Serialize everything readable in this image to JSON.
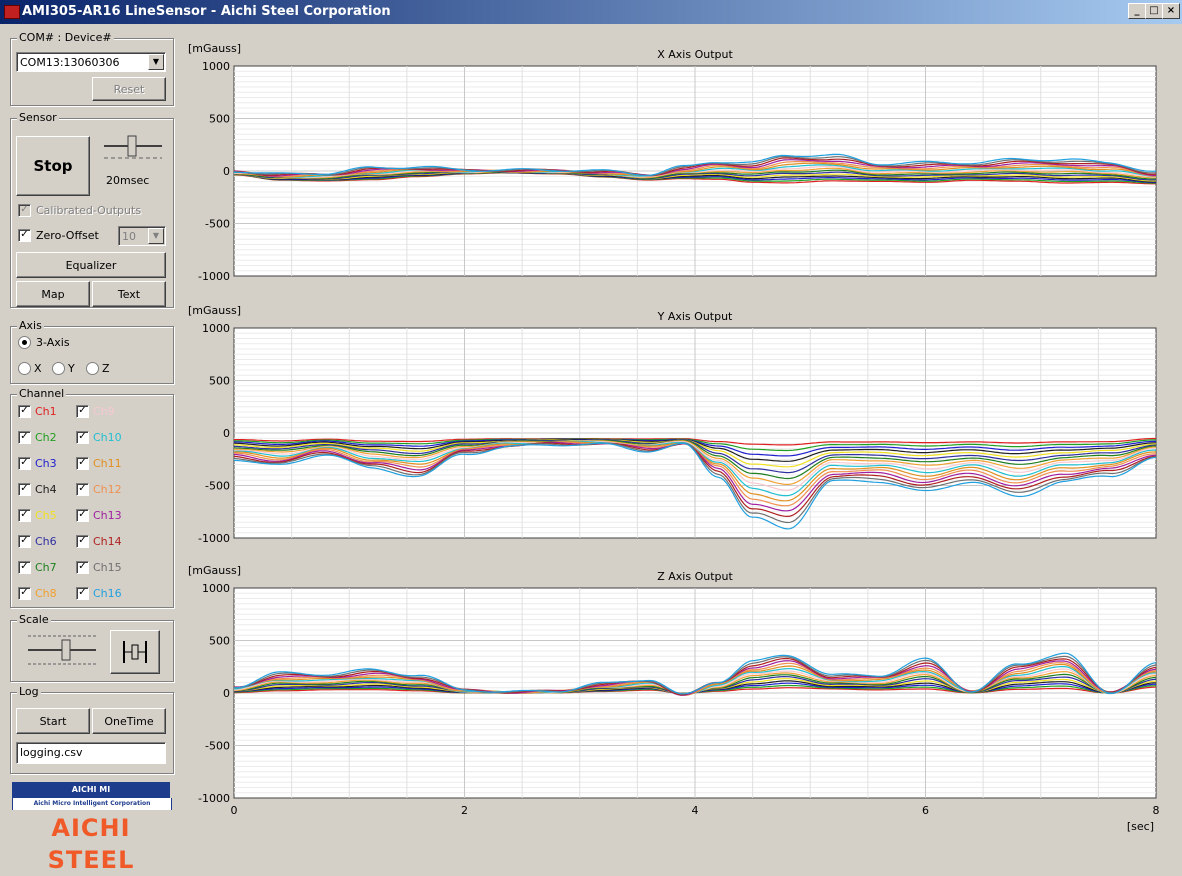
{
  "window": {
    "title": "AMI305-AR16 LineSensor - Aichi Steel Corporation",
    "controls": {
      "minimize": "_",
      "maximize": "□",
      "close": "×"
    }
  },
  "device": {
    "group_label": "COM# : Device#",
    "selected": "COM13:13060306",
    "reset_label": "Reset"
  },
  "sensor": {
    "group_label": "Sensor",
    "stop_label": "Stop",
    "interval_label": "20msec",
    "calibrated_label": "Calibrated-Outputs",
    "zero_offset_label": "Zero-Offset",
    "zero_offset_value": "10",
    "equalizer_label": "Equalizer",
    "map_label": "Map",
    "text_label": "Text"
  },
  "axis": {
    "group_label": "Axis",
    "three_axis_label": "3-Axis",
    "x_label": "X",
    "y_label": "Y",
    "z_label": "Z",
    "selected": "3-Axis"
  },
  "channel": {
    "group_label": "Channel",
    "items": [
      {
        "label": "Ch1",
        "color": "#e02020"
      },
      {
        "label": "Ch2",
        "color": "#20a020"
      },
      {
        "label": "Ch3",
        "color": "#2020d0"
      },
      {
        "label": "Ch4",
        "color": "#202020"
      },
      {
        "label": "Ch5",
        "color": "#f0e020"
      },
      {
        "label": "Ch6",
        "color": "#3030a0"
      },
      {
        "label": "Ch7",
        "color": "#208020"
      },
      {
        "label": "Ch8",
        "color": "#f0a030"
      },
      {
        "label": "Ch9",
        "color": "#f8c8d0"
      },
      {
        "label": "Ch10",
        "color": "#20c0d0"
      },
      {
        "label": "Ch11",
        "color": "#e09020"
      },
      {
        "label": "Ch12",
        "color": "#f09050"
      },
      {
        "label": "Ch13",
        "color": "#a020a0"
      },
      {
        "label": "Ch14",
        "color": "#b02020"
      },
      {
        "label": "Ch15",
        "color": "#707070"
      },
      {
        "label": "Ch16",
        "color": "#20a0e0"
      }
    ]
  },
  "scale": {
    "group_label": "Scale"
  },
  "log": {
    "group_label": "Log",
    "start_label": "Start",
    "onetime_label": "OneTime",
    "filename": "logging.csv"
  },
  "logo": {
    "line1": "AICHI MI",
    "line2": "Aichi Micro Intelligent Corporation",
    "line3": "AICHI STEEL"
  },
  "chart_data": [
    {
      "type": "line",
      "title": "X Axis Output",
      "ylabel": "[mGauss]",
      "xlabel": "",
      "ylim": [
        -1000,
        1000
      ],
      "xlim": [
        0,
        8
      ],
      "yticks": [
        1000,
        500,
        0,
        -500,
        -1000
      ],
      "xticks": [],
      "grid": true,
      "series_count": 16,
      "profile": {
        "x": [
          0,
          0.4,
          0.8,
          1.2,
          1.6,
          2.0,
          2.4,
          2.8,
          3.2,
          3.6,
          3.9,
          4.2,
          4.5,
          4.8,
          5.2,
          5.6,
          6.0,
          6.4,
          6.8,
          7.2,
          7.6,
          8.0
        ],
        "base": [
          -40,
          -90,
          -100,
          -90,
          -60,
          -30,
          -20,
          -30,
          -60,
          -90,
          -80,
          -90,
          -120,
          -130,
          -110,
          -110,
          -120,
          -100,
          -110,
          -130,
          -120,
          -130
        ],
        "amp": [
          40,
          60,
          80,
          120,
          100,
          40,
          30,
          40,
          60,
          60,
          120,
          180,
          200,
          280,
          260,
          180,
          200,
          180,
          220,
          240,
          200,
          120
        ]
      }
    },
    {
      "type": "line",
      "title": "Y Axis Output",
      "ylabel": "[mGauss]",
      "xlabel": "",
      "ylim": [
        -1000,
        1000
      ],
      "xlim": [
        0,
        8
      ],
      "yticks": [
        1000,
        500,
        0,
        -500,
        -1000
      ],
      "xticks": [],
      "grid": true,
      "series_count": 16,
      "profile": {
        "x": [
          0,
          0.4,
          0.8,
          1.2,
          1.6,
          2.0,
          2.4,
          2.8,
          3.2,
          3.6,
          3.9,
          4.2,
          4.5,
          4.8,
          5.2,
          5.6,
          6.0,
          6.4,
          6.8,
          7.2,
          7.6,
          8.0
        ],
        "base": [
          -50,
          -60,
          -50,
          -60,
          -60,
          -50,
          -50,
          -50,
          -50,
          -50,
          -50,
          -60,
          -60,
          -60,
          -60,
          -60,
          -60,
          -60,
          -60,
          -60,
          -60,
          -40
        ],
        "amp": [
          -200,
          -250,
          -150,
          -280,
          -350,
          -150,
          -80,
          -60,
          -60,
          -120,
          -60,
          -350,
          -750,
          -850,
          -400,
          -400,
          -500,
          -400,
          -550,
          -400,
          -350,
          -200
        ]
      }
    },
    {
      "type": "line",
      "title": "Z Axis Output",
      "ylabel": "[mGauss]",
      "xlabel": "[sec]",
      "ylim": [
        -1000,
        1000
      ],
      "xlim": [
        0,
        8
      ],
      "yticks": [
        1000,
        500,
        0,
        -500,
        -1000
      ],
      "xticks": [
        0,
        2,
        4,
        6,
        8
      ],
      "grid": true,
      "series_count": 16,
      "profile": {
        "x": [
          0,
          0.4,
          0.8,
          1.2,
          1.6,
          2.0,
          2.4,
          2.8,
          3.2,
          3.6,
          3.9,
          4.2,
          4.5,
          4.8,
          5.2,
          5.6,
          6.0,
          6.4,
          6.8,
          7.2,
          7.6,
          8.0
        ],
        "base": [
          0,
          10,
          20,
          20,
          10,
          0,
          0,
          0,
          10,
          20,
          0,
          10,
          20,
          30,
          30,
          20,
          20,
          0,
          20,
          20,
          0,
          40
        ],
        "amp": [
          60,
          180,
          160,
          200,
          160,
          30,
          10,
          20,
          80,
          110,
          -20,
          100,
          280,
          330,
          140,
          150,
          300,
          20,
          250,
          360,
          0,
          240
        ]
      }
    }
  ]
}
